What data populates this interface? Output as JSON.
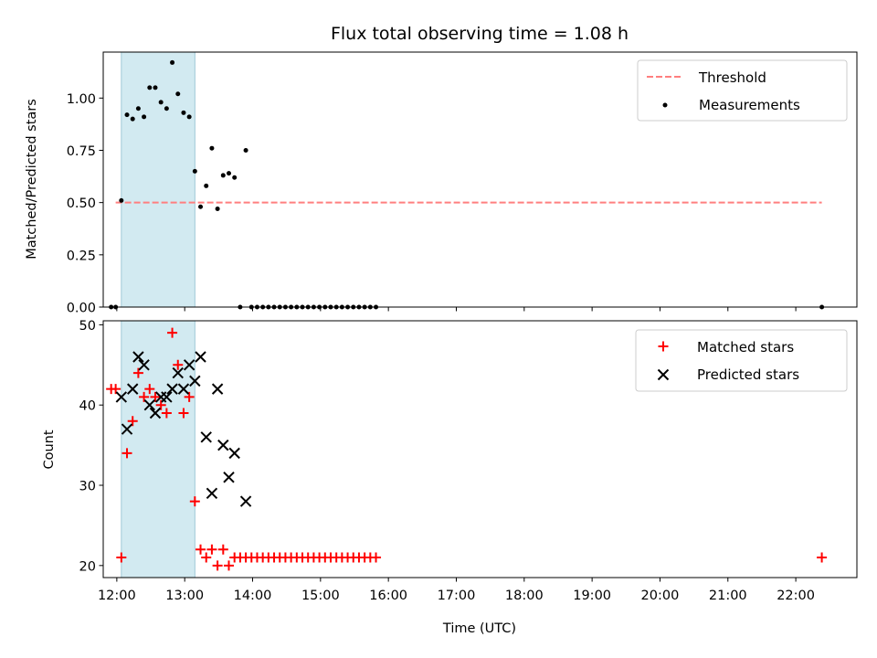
{
  "chart_data": [
    {
      "type": "scatter",
      "title": "Flux total observing time = 1.08 h",
      "ylabel": "Matched/Predicted stars",
      "xlabel": "",
      "ylim": [
        0,
        1.22
      ],
      "xlim_hours": [
        11.8,
        22.9
      ],
      "grid": false,
      "legend_position": "top-right",
      "yticks": [
        0.0,
        0.25,
        0.5,
        0.75,
        1.0
      ],
      "ytick_labels": [
        "0.00",
        "0.25",
        "0.50",
        "0.75",
        "1.00"
      ],
      "shaded_span": [
        "12:04",
        "13:09"
      ],
      "colors": {
        "threshold": "#ff7f7f",
        "measurements": "#000000",
        "span": "#add8e6"
      },
      "series": [
        {
          "name": "Threshold",
          "style": "dashed-line",
          "x": [
            "11:59",
            "22:23"
          ],
          "y": [
            0.5,
            0.5
          ]
        },
        {
          "name": "Measurements",
          "style": "dot",
          "x": [
            "11:55",
            "11:59",
            "12:04",
            "12:09",
            "12:14",
            "12:19",
            "12:24",
            "12:29",
            "12:34",
            "12:39",
            "12:44",
            "12:49",
            "12:54",
            "12:59",
            "13:04",
            "13:09",
            "13:14",
            "13:19",
            "13:24",
            "13:29",
            "13:34",
            "13:39",
            "13:44",
            "13:49",
            "13:54",
            "13:59",
            "14:04",
            "14:09",
            "14:14",
            "14:19",
            "14:24",
            "14:29",
            "14:34",
            "14:39",
            "14:44",
            "14:49",
            "14:54",
            "14:59",
            "15:04",
            "15:09",
            "15:14",
            "15:19",
            "15:24",
            "15:29",
            "15:34",
            "15:39",
            "15:44",
            "15:49",
            "22:23"
          ],
          "y": [
            0.0,
            0.0,
            0.51,
            0.92,
            0.9,
            0.95,
            0.91,
            1.05,
            1.05,
            0.98,
            0.95,
            1.17,
            1.02,
            0.93,
            0.91,
            0.65,
            0.48,
            0.58,
            0.76,
            0.47,
            0.63,
            0.64,
            0.62,
            0.0,
            0.75,
            0.0,
            0.0,
            0.0,
            0.0,
            0.0,
            0.0,
            0.0,
            0.0,
            0.0,
            0.0,
            0.0,
            0.0,
            0.0,
            0.0,
            0.0,
            0.0,
            0.0,
            0.0,
            0.0,
            0.0,
            0.0,
            0.0,
            0.0,
            0.0
          ]
        }
      ]
    },
    {
      "type": "scatter",
      "title": "",
      "ylabel": "Count",
      "xlabel": "Time (UTC)",
      "ylim": [
        18.5,
        50.5
      ],
      "xlim_hours": [
        11.8,
        22.9
      ],
      "grid": false,
      "legend_position": "top-right",
      "yticks": [
        20,
        30,
        40,
        50
      ],
      "ytick_labels": [
        "20",
        "30",
        "40",
        "50"
      ],
      "xtick_labels": [
        "12:00",
        "13:00",
        "14:00",
        "15:00",
        "16:00",
        "17:00",
        "18:00",
        "19:00",
        "20:00",
        "21:00",
        "22:00"
      ],
      "shaded_span": [
        "12:04",
        "13:09"
      ],
      "colors": {
        "matched": "#ff0000",
        "predicted": "#000000",
        "span": "#add8e6"
      },
      "series": [
        {
          "name": "Matched stars",
          "style": "plus",
          "x": [
            "11:55",
            "11:59",
            "12:04",
            "12:09",
            "12:14",
            "12:19",
            "12:24",
            "12:29",
            "12:34",
            "12:39",
            "12:44",
            "12:49",
            "12:54",
            "12:59",
            "13:04",
            "13:09",
            "13:14",
            "13:19",
            "13:24",
            "13:29",
            "13:34",
            "13:39",
            "13:44",
            "13:49",
            "13:54",
            "13:59",
            "14:04",
            "14:09",
            "14:14",
            "14:19",
            "14:24",
            "14:29",
            "14:34",
            "14:39",
            "14:44",
            "14:49",
            "14:54",
            "14:59",
            "15:04",
            "15:09",
            "15:14",
            "15:19",
            "15:24",
            "15:29",
            "15:34",
            "15:39",
            "15:44",
            "15:49",
            "22:23"
          ],
          "y": [
            42,
            42,
            21,
            34,
            38,
            44,
            41,
            42,
            41,
            40,
            39,
            49,
            45,
            39,
            41,
            28,
            22,
            21,
            22,
            20,
            22,
            20,
            21,
            21,
            21,
            21,
            21,
            21,
            21,
            21,
            21,
            21,
            21,
            21,
            21,
            21,
            21,
            21,
            21,
            21,
            21,
            21,
            21,
            21,
            21,
            21,
            21,
            21,
            21
          ]
        },
        {
          "name": "Predicted stars",
          "style": "x",
          "x": [
            "12:04",
            "12:09",
            "12:14",
            "12:19",
            "12:24",
            "12:29",
            "12:34",
            "12:39",
            "12:44",
            "12:49",
            "12:54",
            "12:59",
            "13:04",
            "13:09",
            "13:14",
            "13:19",
            "13:24",
            "13:29",
            "13:34",
            "13:39",
            "13:44",
            "13:54"
          ],
          "y": [
            41,
            37,
            42,
            46,
            45,
            40,
            39,
            41,
            41,
            42,
            44,
            42,
            45,
            43,
            46,
            36,
            29,
            42,
            35,
            31,
            34,
            28
          ]
        }
      ]
    }
  ]
}
